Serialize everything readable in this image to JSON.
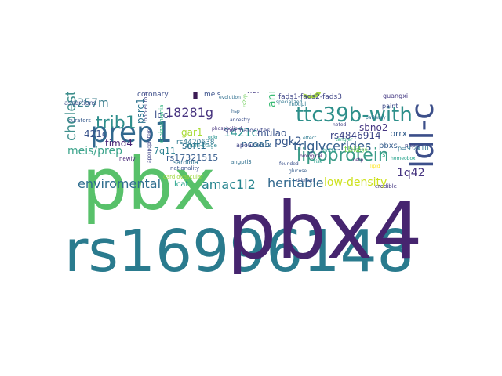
{
  "word_cloud": {
    "words": [
      {
        "text": "rs16996148",
        "color": "#2a7b8e"
      },
      {
        "text": "pbx4",
        "color": "#46256f"
      },
      {
        "text": "pbx",
        "color": "#58c16a"
      },
      {
        "text": "galnt2",
        "color": "#a5d742"
      },
      {
        "text": "cilp2",
        "color": "#3b1a54"
      },
      {
        "text": "ldl-c",
        "color": "#3c4f8a"
      },
      {
        "text": "prep1",
        "color": "#31688e"
      },
      {
        "text": "ttc39b-with",
        "color": "#2d8f8a"
      },
      {
        "text": "lipoprotein",
        "color": "#3b9c88"
      },
      {
        "text": "trib1",
        "color": "#2f8e8c"
      },
      {
        "text": "cholesterol",
        "color": "#3e8f8c"
      },
      {
        "text": "triglycerides",
        "color": "#355f8d"
      },
      {
        "text": "amac1l2",
        "color": "#25848e"
      },
      {
        "text": "heritable",
        "color": "#31688e"
      },
      {
        "text": "enviromental",
        "color": "#2e6d8e"
      },
      {
        "text": "low-density",
        "color": "#cde11d"
      },
      {
        "text": "meis/prep",
        "color": "#3aa38a"
      },
      {
        "text": "v257m",
        "color": "#3c7f8e"
      },
      {
        "text": "18281g",
        "color": "#46327e"
      },
      {
        "text": "annotations",
        "color": "#3bbb75"
      },
      {
        "text": "1421c",
        "color": "#20928c"
      },
      {
        "text": "pgk2",
        "color": "#37588c"
      },
      {
        "text": "1q42",
        "color": "#463480"
      },
      {
        "text": "421c",
        "color": "#3a548c"
      },
      {
        "text": "timd4",
        "color": "#482475"
      },
      {
        "text": "psrc1",
        "color": "#2c728e"
      },
      {
        "text": "gar1",
        "color": "#a8db34"
      },
      {
        "text": "sort1",
        "color": "#2d708e"
      },
      {
        "text": "mulao",
        "color": "#3a558c"
      },
      {
        "text": "loci",
        "color": "#3c4f8a"
      },
      {
        "text": "sbno2",
        "color": "#453581"
      },
      {
        "text": "rs4846914",
        "color": "#3f4788"
      },
      {
        "text": "ncoa5",
        "color": "#31688e"
      },
      {
        "text": "rs17321515",
        "color": "#365c8d"
      },
      {
        "text": "tbl2",
        "color": "#75d054"
      },
      {
        "text": "prrx",
        "color": "#355e8d"
      },
      {
        "text": "7q11",
        "color": "#277f8e"
      },
      {
        "text": "hdl",
        "color": "#443983"
      },
      {
        "text": "lcat",
        "color": "#1fa088"
      },
      {
        "text": "coronary",
        "color": "#3d4e8a"
      },
      {
        "text": "meis",
        "color": "#3b528b"
      },
      {
        "text": "pbxs",
        "color": "#365d8d"
      },
      {
        "text": "rs4420638",
        "color": "#2a768e"
      },
      {
        "text": "sardinia",
        "color": "#2c718e"
      },
      {
        "text": "spermatocytes",
        "color": "#3f4889"
      },
      {
        "text": "cardiovascular",
        "color": "#9dd93b"
      },
      {
        "text": "apoai",
        "color": "#414487"
      },
      {
        "text": "celsr2",
        "color": "#33638d"
      },
      {
        "text": "multi-stage",
        "color": "#26828e"
      },
      {
        "text": "fads1-fads2-fads3",
        "color": "#404688"
      },
      {
        "text": "mlxipl",
        "color": "#2a788e"
      },
      {
        "text": "guangxi",
        "color": "#443983"
      },
      {
        "text": "assertions",
        "color": "#3b528b"
      },
      {
        "text": "curators",
        "color": "#375a8c"
      },
      {
        "text": "schizophrenia",
        "color": "#2db27d"
      },
      {
        "text": "non-european",
        "color": "#414487"
      },
      {
        "text": "nationality",
        "color": "#3a548c"
      },
      {
        "text": "newly",
        "color": "#482878"
      },
      {
        "text": "credible",
        "color": "#453882"
      },
      {
        "text": "paint",
        "color": "#3e4a89"
      },
      {
        "text": "angptl3",
        "color": "#2e6f8e"
      },
      {
        "text": "evolution",
        "color": "#2e6e8e"
      },
      {
        "text": "modulates",
        "color": "#3dbc74"
      },
      {
        "text": "rs2vp",
        "color": "#6ece58"
      },
      {
        "text": "pltp",
        "color": "#414487"
      },
      {
        "text": "rs",
        "color": "#22a884"
      },
      {
        "text": "ancestry",
        "color": "#3c508b"
      },
      {
        "text": "phospholipid",
        "color": "#46337e"
      },
      {
        "text": "apolipoprotein",
        "color": "#404588"
      },
      {
        "text": "hnf1a",
        "color": "#1f9e89"
      },
      {
        "text": "p=9.2x10",
        "color": "#2c728e"
      },
      {
        "text": "biological",
        "color": "#481f70"
      },
      {
        "text": "nhgri",
        "color": "#6ccd5a"
      },
      {
        "text": "homeobox",
        "color": "#1fa088"
      },
      {
        "text": "founded",
        "color": "#3b528b"
      },
      {
        "text": "glucose",
        "color": "#365d8d"
      },
      {
        "text": "hsp",
        "color": "#33638d"
      },
      {
        "text": "cetp",
        "color": "#482878"
      },
      {
        "text": "gckr",
        "color": "#21918c"
      },
      {
        "text": "effect",
        "color": "#2a788e"
      },
      {
        "text": "risk",
        "color": "#1e9c89"
      },
      {
        "text": "lipid",
        "color": "#fde725"
      },
      {
        "text": "dilution",
        "color": "#3b528b"
      },
      {
        "text": "tangier",
        "color": "#28ae80"
      },
      {
        "text": "specialized",
        "color": "#2b748e"
      },
      {
        "text": "pathway",
        "color": "#2c728e"
      },
      {
        "text": "noted",
        "color": "#424086"
      }
    ]
  }
}
